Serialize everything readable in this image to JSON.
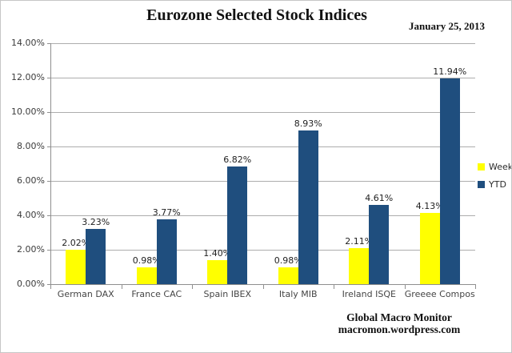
{
  "header": {
    "title": "Eurozone Selected Stock Indices",
    "date": "January 25, 2013"
  },
  "footer": {
    "line1": "Global Macro Monitor",
    "line2": "macromon.wordpress.com"
  },
  "colors": {
    "week_bar": "#FFFF00",
    "ytd_bar": "#1F4E7E",
    "gridline": "#ADADAD",
    "axis": "#8F8F8F",
    "background": "#FFFFFF"
  },
  "chart_data": {
    "type": "bar",
    "title": "Eurozone Selected Stock Indices",
    "subtitle": "January 25, 2013",
    "categories": [
      "German DAX",
      "France CAC",
      "Spain IBEX",
      "Italy MIB",
      "Ireland ISQE",
      "Greeee Compos"
    ],
    "series": [
      {
        "name": "Week",
        "color": "#FFFF00",
        "values": [
          2.02,
          0.98,
          1.4,
          0.98,
          2.11,
          4.13
        ],
        "labels": [
          "2.02%",
          "0.98%",
          "1.40%",
          "0.98%",
          "2.11%",
          "4.13%"
        ]
      },
      {
        "name": "YTD",
        "color": "#1F4E7E",
        "values": [
          3.23,
          3.77,
          6.82,
          8.93,
          4.61,
          11.94
        ],
        "labels": [
          "3.23%",
          "3.77%",
          "6.82%",
          "8.93%",
          "4.61%",
          "11.94%"
        ]
      }
    ],
    "xlabel": "",
    "ylabel": "",
    "ylim": [
      0,
      14
    ],
    "ytick_step": 2,
    "ytick_labels": [
      "0.00%",
      "2.00%",
      "4.00%",
      "6.00%",
      "8.00%",
      "10.00%",
      "12.00%",
      "14.00%"
    ],
    "grid": true,
    "legend_position": "right"
  }
}
